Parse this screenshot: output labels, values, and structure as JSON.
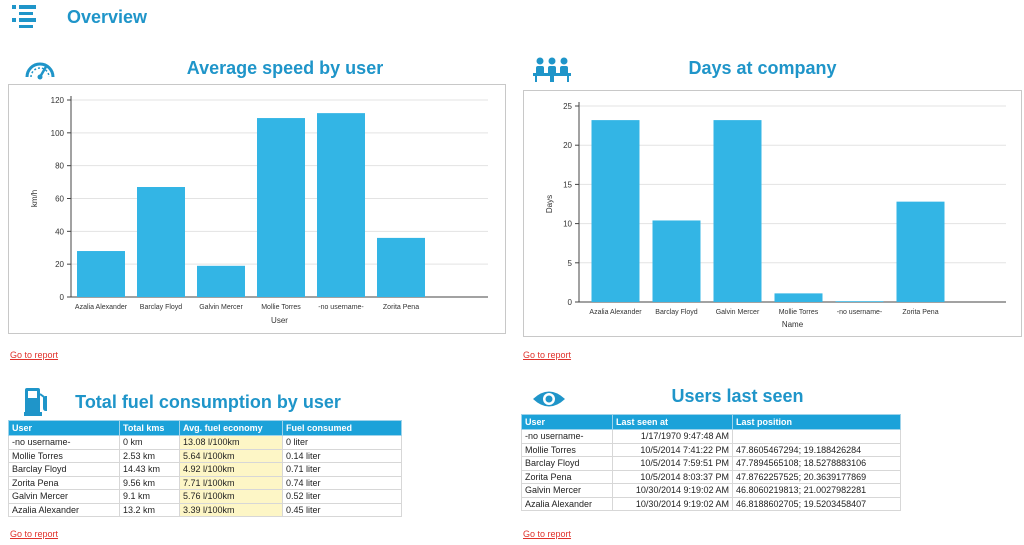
{
  "header": {
    "title": "Overview",
    "icon": "list-icon"
  },
  "speed_section": {
    "title": "Average speed by user",
    "icon": "speedometer-icon",
    "report_link": "Go to report"
  },
  "days_section": {
    "title": "Days at company",
    "icon": "team-meeting-icon",
    "report_link": "Go to report"
  },
  "fuel_section": {
    "title": "Total fuel consumption by user",
    "icon": "fuel-pump-icon",
    "report_link": "Go to report",
    "columns": [
      "User",
      "Total kms",
      "Avg. fuel economy",
      "Fuel consumed"
    ],
    "rows": [
      [
        "-no username-",
        "0 km",
        "13.08 l/100km",
        "0 liter"
      ],
      [
        "Mollie Torres",
        "2.53 km",
        "5.64 l/100km",
        "0.14 liter"
      ],
      [
        "Barclay Floyd",
        "14.43 km",
        "4.92 l/100km",
        "0.71 liter"
      ],
      [
        "Zorita Pena",
        "9.56 km",
        "7.71 l/100km",
        "0.74 liter"
      ],
      [
        "Galvin Mercer",
        "9.1 km",
        "5.76 l/100km",
        "0.52 liter"
      ],
      [
        "Azalia Alexander",
        "13.2 km",
        "3.39 l/100km",
        "0.45 liter"
      ]
    ]
  },
  "seen_section": {
    "title": "Users last seen",
    "icon": "eye-icon",
    "report_link": "Go to report",
    "columns": [
      "User",
      "Last seen at",
      "Last position"
    ],
    "rows": [
      [
        "-no username-",
        "1/17/1970 9:47:48 AM",
        ""
      ],
      [
        "Mollie Torres",
        "10/5/2014 7:41:22 PM",
        "47.8605467294; 19.188426284"
      ],
      [
        "Barclay Floyd",
        "10/5/2014 7:59:51 PM",
        "47.7894565108; 18.5278883106"
      ],
      [
        "Zorita Pena",
        "10/5/2014 8:03:37 PM",
        "47.8762257525; 20.3639177869"
      ],
      [
        "Galvin Mercer",
        "10/30/2014 9:19:02 AM",
        "46.8060219813; 21.0027982281"
      ],
      [
        "Azalia Alexander",
        "10/30/2014 9:19:02 AM",
        "46.8188602705; 19.5203458407"
      ]
    ]
  },
  "colors": {
    "accent": "#1f95c9",
    "bar": "#33b5e5",
    "link": "#e0322b",
    "header_bg": "#1ca2d9",
    "highlight": "#fdf6c6"
  },
  "chart_data": [
    {
      "type": "bar",
      "title": "",
      "categories": [
        "Azalia Alexander",
        "Barclay Floyd",
        "Galvin Mercer",
        "Mollie Torres",
        "-no username-",
        "Zorita Pena"
      ],
      "values": [
        28,
        67,
        19,
        109,
        112,
        36
      ],
      "xlabel": "User",
      "ylabel": "km/h",
      "ylim": [
        0,
        120
      ],
      "yticks": [
        0,
        20,
        40,
        60,
        80,
        100,
        120
      ],
      "grid": true
    },
    {
      "type": "bar",
      "title": "",
      "categories": [
        "Azalia Alexander",
        "Barclay Floyd",
        "Galvin Mercer",
        "Mollie Torres",
        "-no username-",
        "Zorita Pena"
      ],
      "values": [
        23.2,
        10.4,
        23.2,
        1.1,
        0.1,
        12.8
      ],
      "xlabel": "Name",
      "ylabel": "Days",
      "ylim": [
        0,
        25
      ],
      "yticks": [
        0,
        5,
        10,
        15,
        20,
        25
      ],
      "grid": true
    }
  ]
}
